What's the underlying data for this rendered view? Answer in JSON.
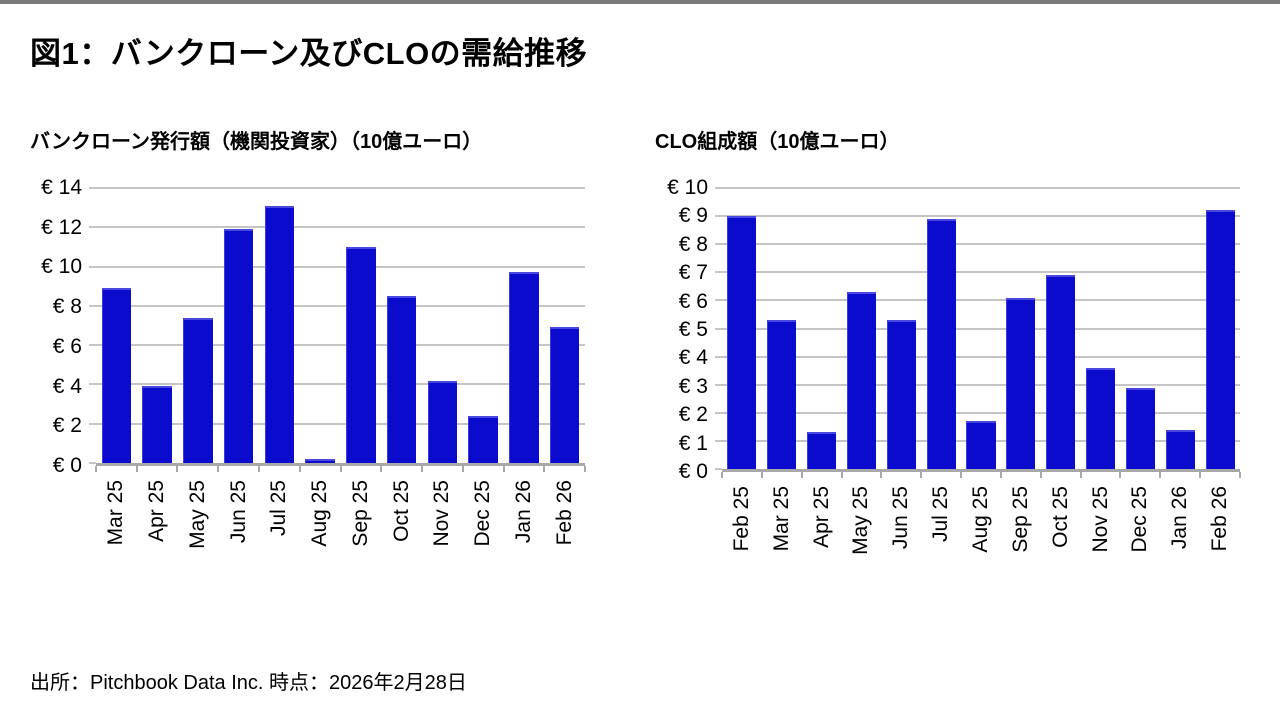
{
  "page": {
    "title": "図1：バンクローン及びCLOの需給推移",
    "footer": "出所：Pitchbook Data Inc. 時点：2026年2月28日"
  },
  "colors": {
    "bar_blue": "#0b0bce",
    "gridline": "#c5c5c5",
    "axis_line": "#a8a8a8",
    "top_strip": "#7a7a7a"
  },
  "chart_data": [
    {
      "type": "bar",
      "title": "バンクローン発行額（機関投資家）（10億ユーロ）",
      "categories": [
        "Mar 25",
        "Apr 25",
        "May 25",
        "Jun 25",
        "Jul 25",
        "Aug 25",
        "Sep 25",
        "Oct 25",
        "Nov 25",
        "Dec 25",
        "Jan 26",
        "Feb 26"
      ],
      "values": [
        8.9,
        3.9,
        7.4,
        11.9,
        13.1,
        0.2,
        11.0,
        8.5,
        4.2,
        2.4,
        9.7,
        6.9
      ],
      "ylim": [
        0,
        14
      ],
      "ytick_step": 2,
      "ytick_labels": [
        "€ 0",
        "€ 2",
        "€ 4",
        "€ 6",
        "€ 8",
        "€ 10",
        "€ 12",
        "€ 14"
      ],
      "xlabel": "",
      "ylabel": "",
      "grid": true,
      "legend": false,
      "bar_color": "#0b0bce"
    },
    {
      "type": "bar",
      "title": "CLO組成額（10億ユーロ）",
      "categories": [
        "Feb 25",
        "Mar 25",
        "Apr 25",
        "May 25",
        "Jun 25",
        "Jul 25",
        "Aug 25",
        "Sep 25",
        "Oct 25",
        "Nov 25",
        "Dec 25",
        "Jan 26",
        "Feb 26"
      ],
      "values": [
        9.0,
        5.3,
        1.3,
        6.3,
        5.3,
        8.9,
        1.7,
        6.1,
        6.9,
        3.6,
        2.9,
        1.4,
        9.2
      ],
      "ylim": [
        0,
        10
      ],
      "ytick_step": 1,
      "ytick_labels": [
        "€ 0",
        "€ 1",
        "€ 2",
        "€ 3",
        "€ 4",
        "€ 5",
        "€ 6",
        "€ 7",
        "€ 8",
        "€ 9",
        "€ 10"
      ],
      "xlabel": "",
      "ylabel": "",
      "grid": true,
      "legend": false,
      "bar_color": "#0b0bce"
    }
  ]
}
